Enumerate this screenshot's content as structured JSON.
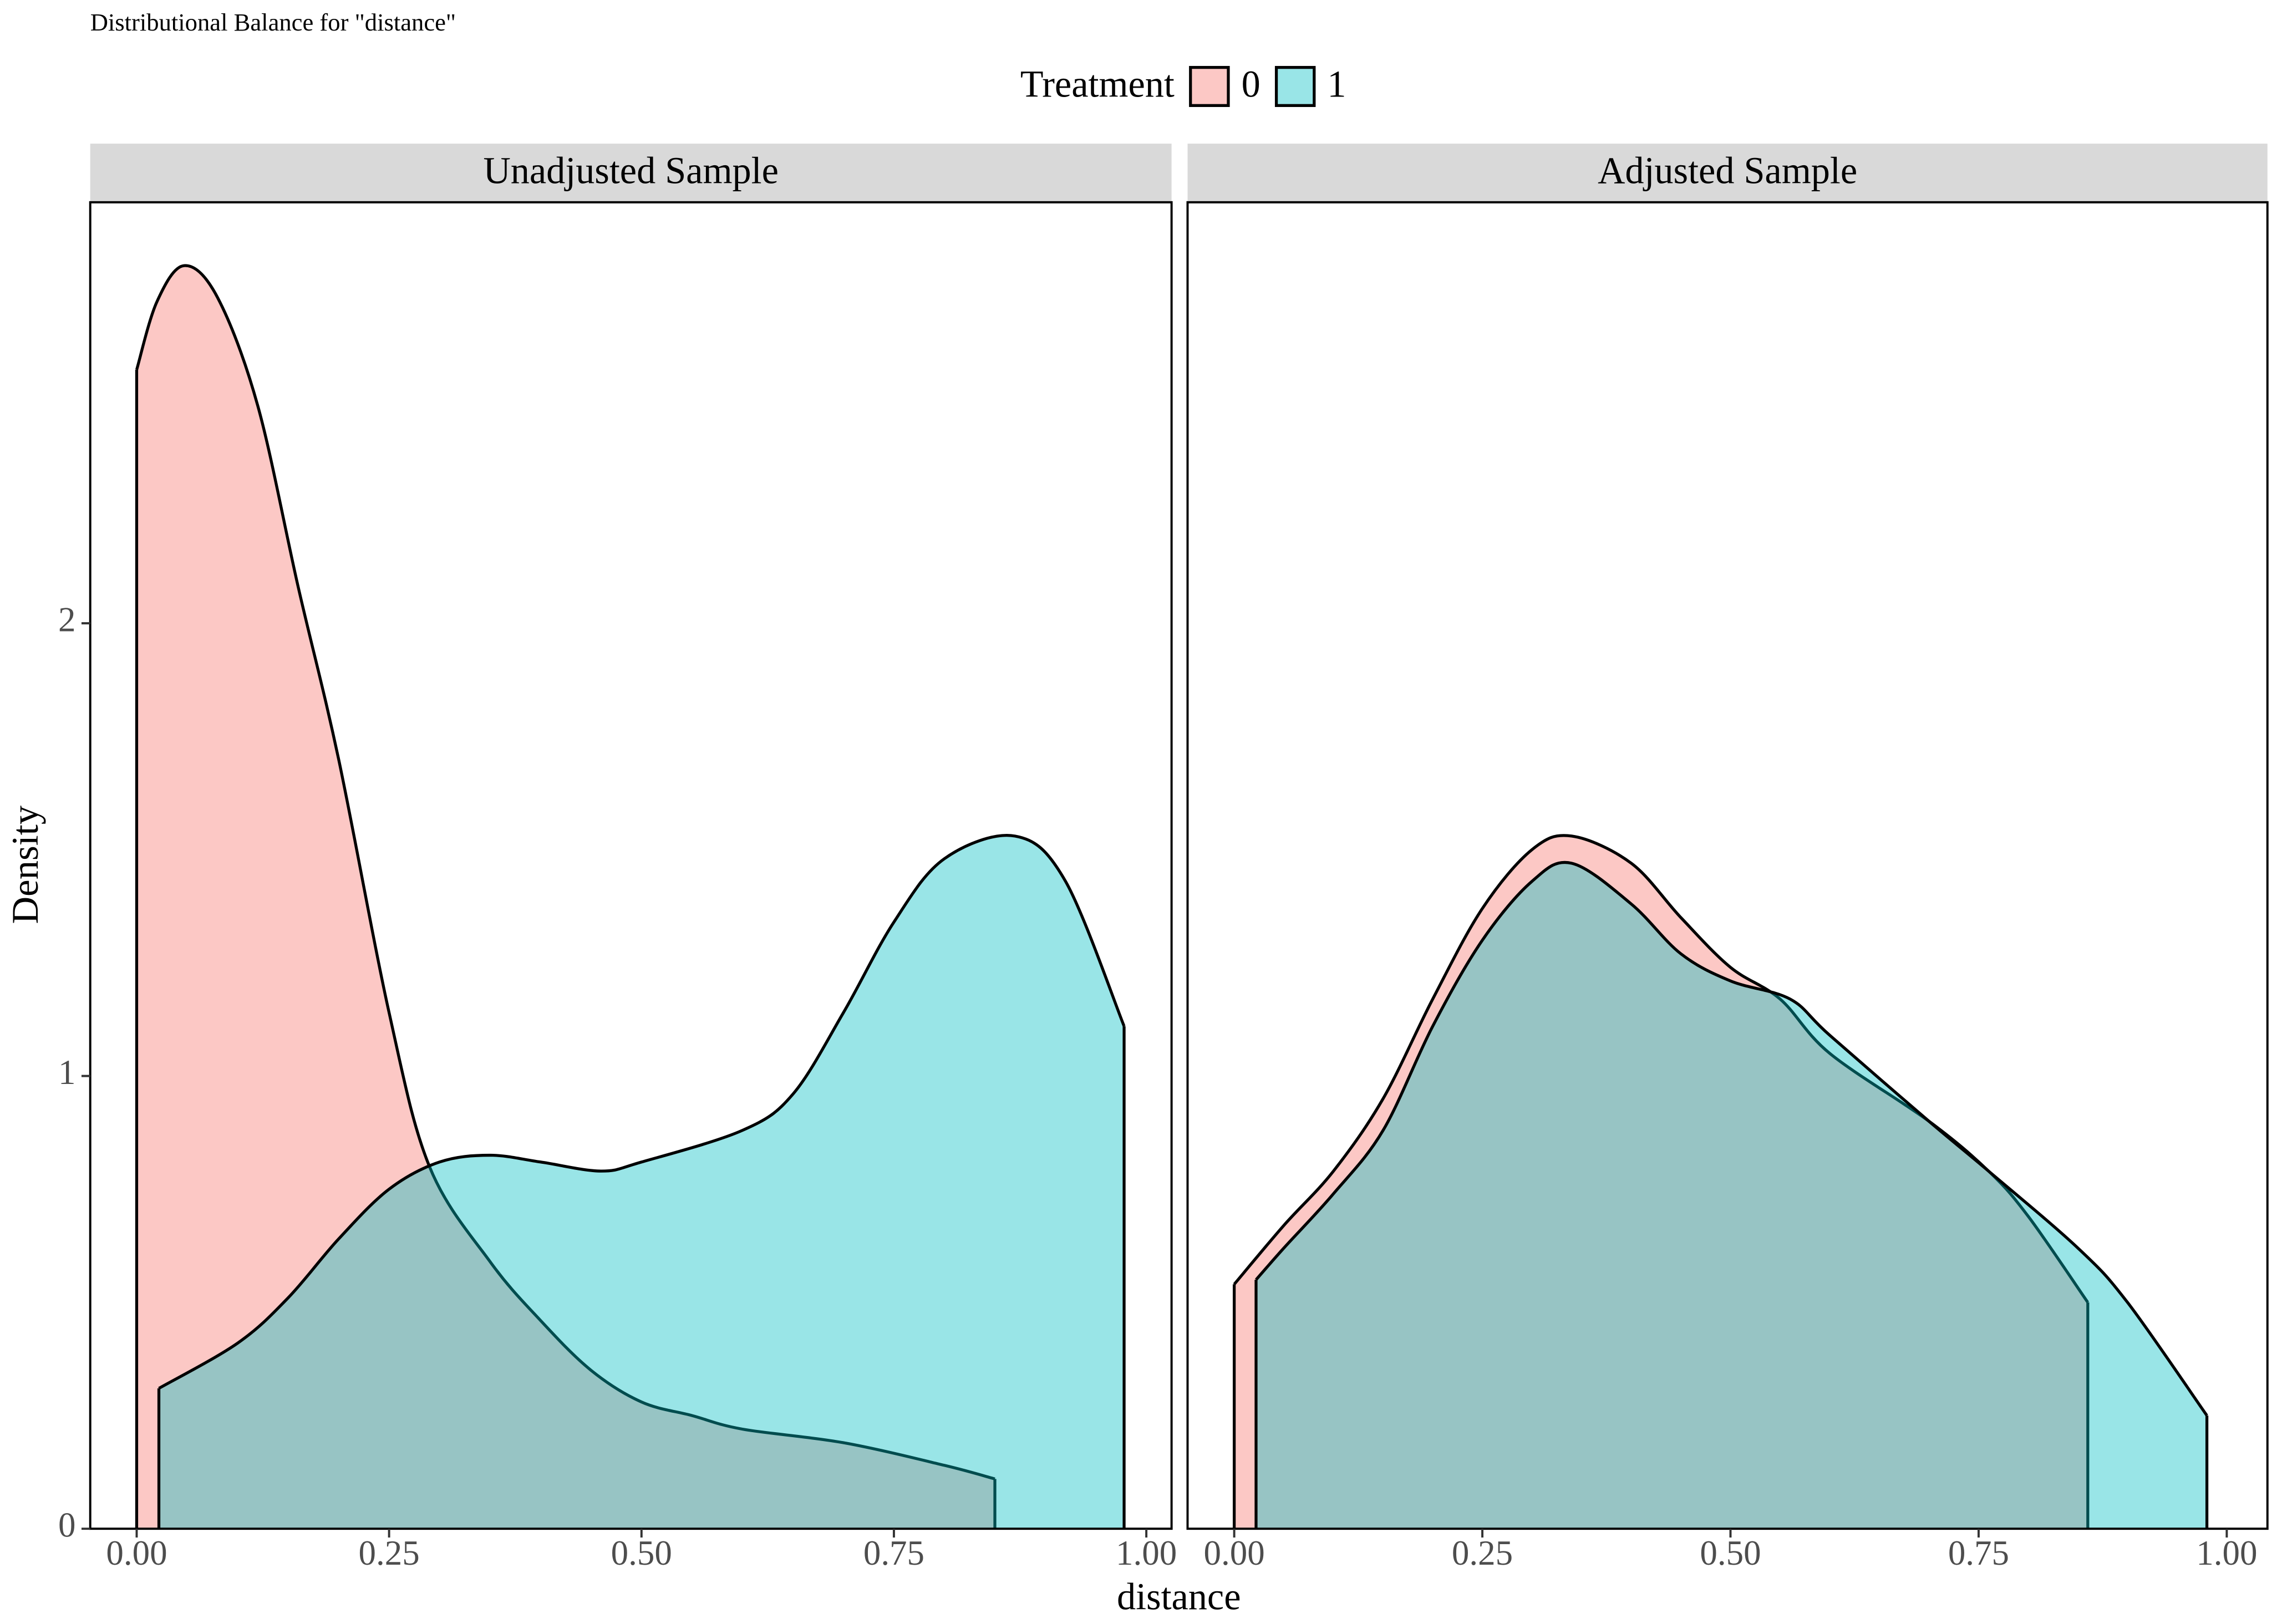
{
  "chart_data": {
    "type": "area",
    "title": "Distributional Balance for \"distance\"",
    "legend_title": "Treatment",
    "x_label": "distance",
    "y_label": "Density",
    "series": [
      {
        "name": "0",
        "color": "#F8766D"
      },
      {
        "name": "1",
        "color": "#00BFC4"
      }
    ],
    "panels": [
      {
        "title": "Unadjusted Sample",
        "xlim": [
          -0.046,
          1.025
        ],
        "ylim": [
          0,
          2.93
        ],
        "xticks": [
          {
            "value": 0,
            "label": "0.00"
          },
          {
            "value": 0.25,
            "label": "0.25"
          },
          {
            "value": 0.5,
            "label": "0.50"
          },
          {
            "value": 0.75,
            "label": "0.75"
          },
          {
            "value": 1,
            "label": "1.00"
          }
        ],
        "yticks": [
          0,
          1,
          2
        ],
        "series": [
          {
            "x": [
              0,
              0.02,
              0.047,
              0.08,
              0.12,
              0.16,
              0.2,
              0.25,
              0.29,
              0.35,
              0.4,
              0.45,
              0.5,
              0.55,
              0.6,
              0.7,
              0.8,
              0.85
            ],
            "values": [
              2.56,
              2.71,
              2.79,
              2.72,
              2.48,
              2.08,
              1.7,
              1.14,
              0.8,
              0.59,
              0.46,
              0.35,
              0.28,
              0.25,
              0.22,
              0.19,
              0.14,
              0.11
            ]
          },
          {
            "x": [
              0.022,
              0.1,
              0.15,
              0.2,
              0.25,
              0.3,
              0.35,
              0.4,
              0.46,
              0.5,
              0.6,
              0.65,
              0.7,
              0.75,
              0.8,
              0.87,
              0.92,
              0.978
            ],
            "values": [
              0.31,
              0.41,
              0.51,
              0.64,
              0.75,
              0.81,
              0.825,
              0.81,
              0.79,
              0.81,
              0.88,
              0.96,
              1.14,
              1.34,
              1.48,
              1.53,
              1.43,
              1.11
            ]
          }
        ]
      },
      {
        "title": "Adjusted Sample",
        "xlim": [
          -0.047,
          1.041
        ],
        "ylim": [
          0,
          2.93
        ],
        "xticks": [
          {
            "value": 0,
            "label": "0.00"
          },
          {
            "value": 0.25,
            "label": "0.25"
          },
          {
            "value": 0.5,
            "label": "0.50"
          },
          {
            "value": 0.75,
            "label": "0.75"
          },
          {
            "value": 1,
            "label": "1.00"
          }
        ],
        "yticks": [
          0,
          1,
          2
        ],
        "series": [
          {
            "x": [
              0,
              0.05,
              0.1,
              0.15,
              0.2,
              0.25,
              0.3,
              0.34,
              0.4,
              0.45,
              0.5,
              0.55,
              0.6,
              0.7,
              0.76,
              0.8,
              0.86
            ],
            "values": [
              0.54,
              0.67,
              0.79,
              0.95,
              1.17,
              1.37,
              1.5,
              1.53,
              1.47,
              1.35,
              1.24,
              1.17,
              1.05,
              0.9,
              0.79,
              0.69,
              0.5
            ]
          },
          {
            "x": [
              0.022,
              0.05,
              0.1,
              0.15,
              0.2,
              0.25,
              0.3,
              0.34,
              0.4,
              0.45,
              0.5,
              0.56,
              0.6,
              0.7,
              0.76,
              0.85,
              0.9,
              0.98
            ],
            "values": [
              0.55,
              0.62,
              0.74,
              0.88,
              1.11,
              1.3,
              1.43,
              1.47,
              1.38,
              1.27,
              1.21,
              1.17,
              1.09,
              0.9,
              0.79,
              0.62,
              0.5,
              0.25
            ]
          }
        ]
      }
    ]
  }
}
